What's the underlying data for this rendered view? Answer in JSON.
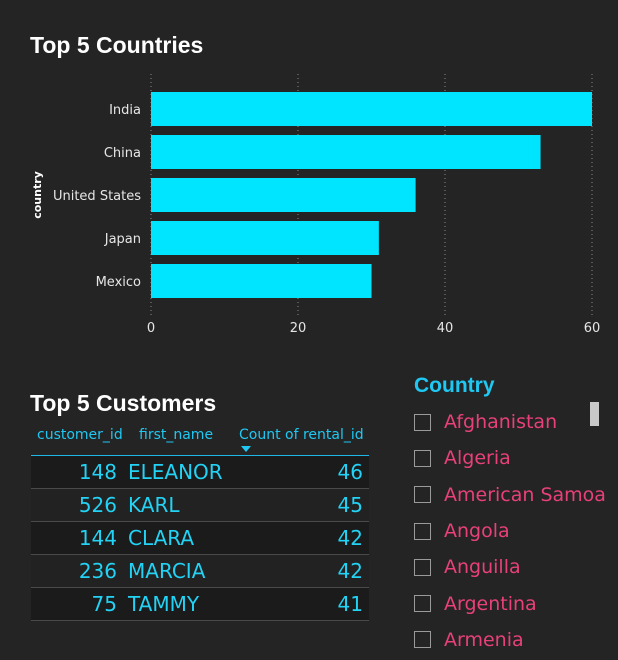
{
  "chart_data": {
    "type": "bar",
    "orientation": "horizontal",
    "title": "Top 5 Countries",
    "ylabel": "country",
    "xlabel": "",
    "categories": [
      "India",
      "China",
      "United States",
      "Japan",
      "Mexico"
    ],
    "values": [
      60,
      53,
      36,
      31,
      30
    ],
    "xlim": [
      0,
      60
    ],
    "xticks": [
      0,
      20,
      40,
      60
    ],
    "bar_color": "#00e5ff",
    "grid": "vertical dotted"
  },
  "table": {
    "title": "Top 5 Customers",
    "columns": [
      "customer_id",
      "first_name",
      "Count of rental_id"
    ],
    "rows": [
      [
        "148",
        "ELEANOR",
        "46"
      ],
      [
        "526",
        "KARL",
        "45"
      ],
      [
        "144",
        "CLARA",
        "42"
      ],
      [
        "236",
        "MARCIA",
        "42"
      ],
      [
        "75",
        "TAMMY",
        "41"
      ]
    ]
  },
  "slicer": {
    "title": "Country",
    "items": [
      "Afghanistan",
      "Algeria",
      "American Samoa",
      "Angola",
      "Anguilla",
      "Argentina",
      "Armenia"
    ]
  },
  "colors": {
    "accent": "#1fc8f2",
    "bar": "#00e5ff",
    "slicer_text": "#e8407a",
    "background": "#242424"
  }
}
